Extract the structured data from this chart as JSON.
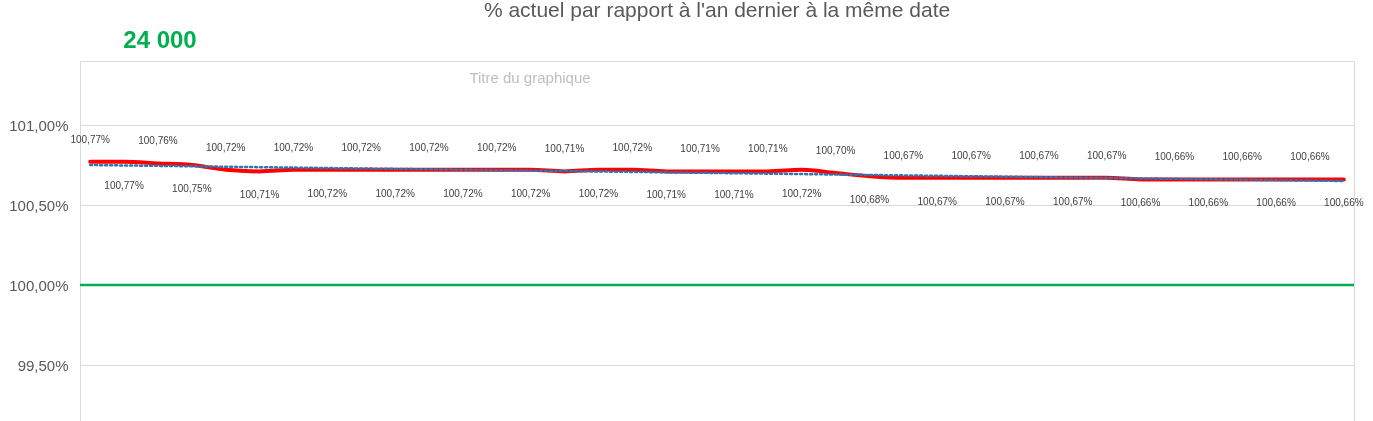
{
  "chart_data": {
    "type": "line",
    "title": "% actuel par rapport à l'an dernier à la même date",
    "annotations": [
      "24 000",
      "Titre du graphique"
    ],
    "categories": [
      null,
      null,
      null,
      null,
      null,
      null,
      null,
      null,
      null,
      null,
      null,
      null,
      null,
      null,
      null,
      null,
      null,
      null,
      null,
      null,
      null,
      null,
      null,
      null,
      null,
      null,
      null,
      null,
      null,
      null,
      null,
      null,
      null,
      null,
      null,
      null,
      null,
      null
    ],
    "series": [
      {
        "color": "#ff0000",
        "values": [
          100.77,
          100.77,
          100.76,
          100.75,
          100.72,
          100.71,
          100.72,
          100.72,
          100.72,
          100.72,
          100.72,
          100.72,
          100.72,
          100.72,
          100.71,
          100.72,
          100.72,
          100.71,
          100.71,
          100.71,
          100.71,
          100.72,
          100.7,
          100.68,
          100.67,
          100.67,
          100.67,
          100.67,
          100.67,
          100.67,
          100.67,
          100.66,
          100.66,
          100.66,
          100.66,
          100.66,
          100.66,
          100.66
        ],
        "value_labels": [
          "100,77%",
          "100,77%",
          "100,76%",
          "100,75%",
          "100,72%",
          "100,71%",
          "100,72%",
          "100,72%",
          "100,72%",
          "100,72%",
          "100,72%",
          "100,72%",
          "100,72%",
          "100,72%",
          "100,71%",
          "100,72%",
          "100,72%",
          "100,71%",
          "100,71%",
          "100,71%",
          "100,71%",
          "100,72%",
          "100,70%",
          "100,68%",
          "100,67%",
          "100,67%",
          "100,67%",
          "100,67%",
          "100,67%",
          "100,67%",
          "100,67%",
          "100,66%",
          "100,66%",
          "100,66%",
          "100,66%",
          "100,66%",
          "100,66%",
          "100,66%"
        ]
      },
      {
        "type": "line",
        "color": "#2e75b6",
        "line_style": "dotted",
        "values": [
          100.75,
          null,
          null,
          null,
          null,
          null,
          null,
          null,
          null,
          null,
          null,
          null,
          null,
          null,
          null,
          null,
          null,
          null,
          null,
          null,
          null,
          null,
          null,
          null,
          null,
          null,
          null,
          null,
          null,
          null,
          null,
          null,
          null,
          null,
          null,
          null,
          null,
          100.65
        ]
      }
    ],
    "ylim": [
      99.15,
      101.4
    ],
    "yticks": [
      {
        "value": 99.5,
        "label": "99,50%"
      },
      {
        "value": 100,
        "label": "100,00%"
      },
      {
        "value": 100.5,
        "label": "100,50%"
      },
      {
        "value": 101,
        "label": "101,00%"
      }
    ],
    "ref_lines": [
      {
        "axis": "y",
        "value": 100,
        "color": "#00b050"
      }
    ],
    "grid": "y",
    "tick_labels": "y"
  }
}
